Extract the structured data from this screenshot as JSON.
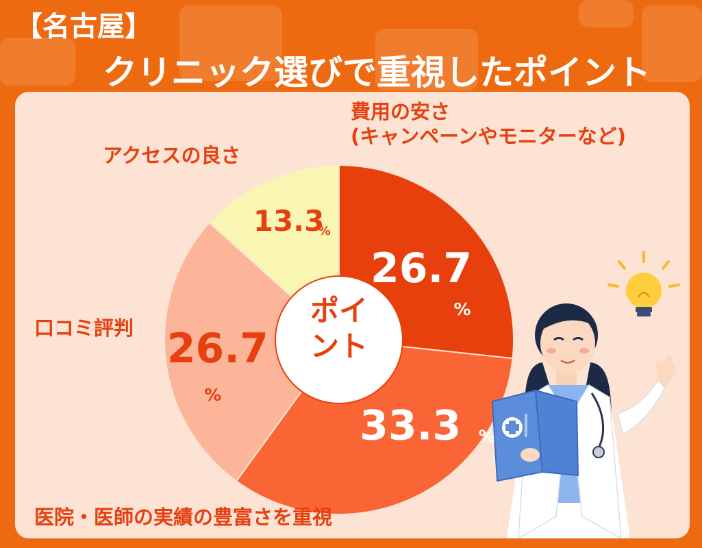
{
  "title": {
    "line1": "【名古屋】",
    "line2": "クリニック選びで重視したポイント"
  },
  "center_label": [
    "ポイ",
    "ント"
  ],
  "chart_data": {
    "type": "pie",
    "title": "【名古屋】クリニック選びで重視したポイント",
    "unit": "%",
    "slices": [
      {
        "label": "費用の安さ (キャンペーンやモニターなど)",
        "value": 26.7,
        "display": "26.7",
        "color": "#E8400C",
        "text_color": "#FFFFFF"
      },
      {
        "label": "医院・医師の実績の豊富さを重視",
        "value": 33.3,
        "display": "33.3",
        "color": "#FA6536",
        "text_color": "#FFFFFF"
      },
      {
        "label": "口コミ評判",
        "value": 26.7,
        "display": "26.7",
        "color": "#FDB59A",
        "text_color": "#E64010"
      },
      {
        "label": "アクセスの良さ",
        "value": 13.3,
        "display": "13.3",
        "color": "#F8F6B2",
        "text_color": "#E64010"
      }
    ]
  },
  "labels": {
    "cost_line1": "費用の安さ",
    "cost_line2": "(キャンペーンやモニターなど)",
    "access": "アクセスの良さ",
    "reviews": "口コミ評判",
    "experience": "医院・医師の実績の豊富さを重視"
  },
  "colors": {
    "background": "#EE6A10",
    "panel": "#FCE3D4",
    "accent_text": "#E64010"
  },
  "icons": [
    "doctor-illustration",
    "lightbulb-icon",
    "medical-cross-icon"
  ]
}
